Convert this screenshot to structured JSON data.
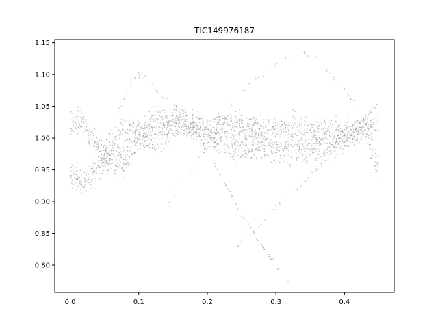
{
  "chart_data": {
    "type": "scatter",
    "title": "TIC149976187",
    "xlabel": "",
    "ylabel": "",
    "xlim": [
      -0.0225,
      0.4725
    ],
    "ylim": [
      0.757,
      1.155
    ],
    "xticks": [
      0.0,
      0.1,
      0.2,
      0.3,
      0.4
    ],
    "xtick_labels": [
      "0.0",
      "0.1",
      "0.2",
      "0.3",
      "0.4"
    ],
    "yticks": [
      0.8,
      0.85,
      0.9,
      0.95,
      1.0,
      1.05,
      1.1,
      1.15
    ],
    "ytick_labels": [
      "0.80",
      "0.85",
      "0.90",
      "0.95",
      "1.00",
      "1.05",
      "1.10",
      "1.15"
    ],
    "grid": false,
    "legend": "none",
    "marker_color": "#808080",
    "series": [
      {
        "description_points": "band A (main phased light curve, upper-left loop branch)",
        "x": [
          0.0,
          0.01,
          0.02,
          0.03,
          0.04,
          0.05,
          0.06,
          0.07,
          0.08,
          0.09,
          0.1,
          0.11,
          0.12,
          0.13,
          0.14,
          0.15,
          0.16,
          0.17,
          0.18,
          0.19,
          0.2,
          0.21,
          0.22,
          0.23,
          0.24,
          0.25,
          0.26,
          0.27,
          0.28,
          0.29,
          0.3,
          0.31,
          0.32,
          0.33,
          0.34,
          0.35,
          0.36,
          0.37,
          0.38,
          0.39,
          0.4,
          0.41,
          0.42,
          0.43,
          0.44,
          0.45
        ],
        "y": [
          1.025,
          1.03,
          1.02,
          1.0,
          0.985,
          0.972,
          0.963,
          0.96,
          0.965,
          0.98,
          0.998,
          1.012,
          1.025,
          1.03,
          1.028,
          1.025,
          1.02,
          1.018,
          1.015,
          1.01,
          1.005,
          1.0,
          0.996,
          0.992,
          0.99,
          0.988,
          0.987,
          0.986,
          0.985,
          0.984,
          0.983,
          0.982,
          0.981,
          0.981,
          0.982,
          0.984,
          0.986,
          0.989,
          0.992,
          0.996,
          1.0,
          1.008,
          1.015,
          1.02,
          1.022,
          1.024
        ]
      },
      {
        "description_points": "band B (main phased light curve, lower-left loop branch)",
        "x": [
          0.0,
          0.01,
          0.02,
          0.03,
          0.04,
          0.05,
          0.06,
          0.07,
          0.08,
          0.09,
          0.1,
          0.11,
          0.12,
          0.13,
          0.14,
          0.15,
          0.16,
          0.17,
          0.18,
          0.19,
          0.2,
          0.21,
          0.22,
          0.23,
          0.24,
          0.25,
          0.26,
          0.27,
          0.28,
          0.29,
          0.3,
          0.31,
          0.32,
          0.33,
          0.34,
          0.35,
          0.36,
          0.37,
          0.38,
          0.39,
          0.4,
          0.41,
          0.42,
          0.43,
          0.44,
          0.45
        ],
        "y": [
          0.945,
          0.935,
          0.93,
          0.935,
          0.948,
          0.965,
          0.985,
          1.0,
          1.01,
          1.012,
          1.008,
          1.0,
          0.995,
          1.0,
          1.01,
          1.02,
          1.025,
          1.024,
          1.02,
          1.016,
          1.012,
          1.015,
          1.022,
          1.025,
          1.022,
          1.018,
          1.015,
          1.013,
          1.012,
          1.012,
          1.013,
          1.014,
          1.015,
          1.016,
          1.016,
          1.015,
          1.014,
          1.012,
          1.01,
          1.008,
          1.006,
          1.005,
          1.008,
          1.015,
          0.985,
          0.95
        ]
      },
      {
        "description_points": "outlier trace rising from 0.14 to 0.34",
        "x": [
          0.14,
          0.16,
          0.18,
          0.2,
          0.22,
          0.24,
          0.26,
          0.28,
          0.3,
          0.32,
          0.34,
          0.36,
          0.38,
          0.4,
          0.42
        ],
        "y": [
          0.89,
          0.925,
          0.955,
          0.985,
          1.02,
          1.06,
          1.085,
          1.1,
          1.115,
          1.125,
          1.135,
          1.125,
          1.1,
          1.075,
          1.05
        ]
      },
      {
        "description_points": "outlier trace descending from 0.20 to 0.32",
        "x": [
          0.19,
          0.21,
          0.23,
          0.25,
          0.27,
          0.29,
          0.31,
          0.32
        ],
        "y": [
          1.0,
          0.96,
          0.92,
          0.88,
          0.845,
          0.815,
          0.785,
          0.775
        ]
      },
      {
        "description_points": "outlier trace rising from 0.24 to 0.45",
        "x": [
          0.24,
          0.26,
          0.28,
          0.3,
          0.32,
          0.34,
          0.36,
          0.38,
          0.4,
          0.42,
          0.44,
          0.45
        ],
        "y": [
          0.825,
          0.845,
          0.865,
          0.89,
          0.91,
          0.93,
          0.95,
          0.975,
          0.995,
          1.02,
          1.045,
          1.055
        ]
      },
      {
        "description_points": "outlier trace peaking near 0.1",
        "x": [
          0.03,
          0.05,
          0.07,
          0.09,
          0.1,
          0.11,
          0.13,
          0.15,
          0.17
        ],
        "y": [
          0.95,
          0.99,
          1.04,
          1.09,
          1.1,
          1.095,
          1.07,
          1.05,
          1.04
        ]
      }
    ]
  }
}
